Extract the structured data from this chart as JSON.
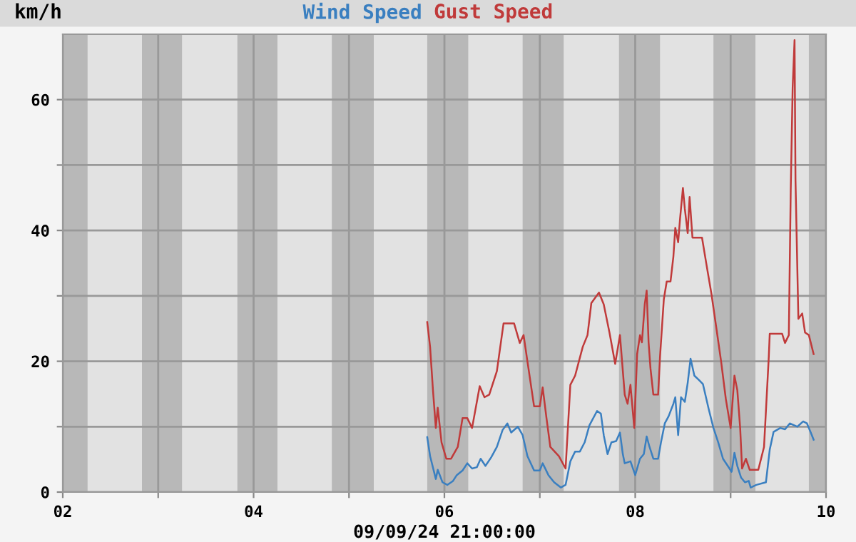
{
  "chart_data": {
    "type": "line",
    "ylabel": "km/h",
    "xlabel": "09/09/24 21:00:00",
    "series": [
      {
        "name": "Wind Speed",
        "color": "#3a7fc0",
        "x": [
          5.82,
          5.85,
          5.91,
          5.93,
          5.98,
          6.03,
          6.09,
          6.13,
          6.19,
          6.24,
          6.29,
          6.34,
          6.38,
          6.43,
          6.49,
          6.55,
          6.61,
          6.66,
          6.7,
          6.77,
          6.82,
          6.87,
          6.94,
          7.0,
          7.03,
          7.09,
          7.15,
          7.22,
          7.27,
          7.32,
          7.37,
          7.42,
          7.47,
          7.52,
          7.6,
          7.64,
          7.67,
          7.71,
          7.75,
          7.8,
          7.84,
          7.87,
          7.89,
          7.95,
          8.0,
          8.05,
          8.09,
          8.12,
          8.15,
          8.19,
          8.24,
          8.27,
          8.31,
          8.35,
          8.4,
          8.42,
          8.45,
          8.48,
          8.52,
          8.55,
          8.58,
          8.62,
          8.67,
          8.71,
          8.77,
          8.82,
          8.87,
          8.92,
          8.97,
          9.01,
          9.04,
          9.07,
          9.11,
          9.15,
          9.19,
          9.21,
          9.27,
          9.37,
          9.41,
          9.45,
          9.52,
          9.57,
          9.62,
          9.7,
          9.76,
          9.8,
          9.84,
          9.87
        ],
        "values": [
          8.4,
          5.5,
          2.0,
          3.4,
          1.5,
          1.1,
          1.7,
          2.6,
          3.3,
          4.4,
          3.6,
          3.8,
          5.1,
          4.0,
          5.3,
          6.9,
          9.5,
          10.5,
          9.1,
          10.0,
          8.7,
          5.5,
          3.3,
          3.3,
          4.4,
          2.6,
          1.5,
          0.7,
          1.1,
          4.7,
          6.2,
          6.2,
          7.6,
          10.2,
          12.4,
          12.0,
          8.7,
          5.8,
          7.6,
          7.8,
          9.1,
          5.8,
          4.4,
          4.7,
          2.6,
          5.1,
          5.8,
          8.5,
          6.9,
          5.1,
          5.1,
          7.6,
          10.5,
          11.6,
          13.5,
          14.5,
          8.7,
          14.5,
          13.8,
          16.7,
          20.4,
          17.8,
          17.1,
          16.5,
          12.7,
          9.8,
          7.6,
          5.1,
          4.0,
          3.1,
          6.0,
          4.0,
          2.2,
          1.5,
          1.7,
          0.7,
          1.1,
          1.5,
          6.5,
          9.2,
          9.8,
          9.6,
          10.5,
          10.0,
          10.8,
          10.5,
          9.1,
          8.0
        ]
      },
      {
        "name": "Gust Speed",
        "color": "#c03a3a",
        "x": [
          5.82,
          5.85,
          5.88,
          5.91,
          5.93,
          5.97,
          6.02,
          6.07,
          6.14,
          6.19,
          6.24,
          6.29,
          6.37,
          6.42,
          6.47,
          6.55,
          6.62,
          6.73,
          6.79,
          6.83,
          6.87,
          6.94,
          7.0,
          7.03,
          7.07,
          7.11,
          7.2,
          7.27,
          7.32,
          7.37,
          7.45,
          7.5,
          7.54,
          7.62,
          7.67,
          7.73,
          7.79,
          7.84,
          7.89,
          7.92,
          7.95,
          7.99,
          8.02,
          8.05,
          8.07,
          8.1,
          8.12,
          8.14,
          8.16,
          8.19,
          8.24,
          8.26,
          8.3,
          8.33,
          8.37,
          8.4,
          8.42,
          8.45,
          8.47,
          8.5,
          8.52,
          8.55,
          8.57,
          8.6,
          8.7,
          8.75,
          8.8,
          8.85,
          8.9,
          8.95,
          9.0,
          9.04,
          9.07,
          9.1,
          9.12,
          9.16,
          9.2,
          9.29,
          9.35,
          9.4,
          9.41,
          9.54,
          9.57,
          9.61,
          9.63,
          9.65,
          9.67,
          9.68,
          9.71,
          9.75,
          9.78,
          9.82,
          9.87
        ],
        "values": [
          26.0,
          22.2,
          15.6,
          9.8,
          12.9,
          7.6,
          5.1,
          5.1,
          6.9,
          11.3,
          11.3,
          9.8,
          16.2,
          14.5,
          14.9,
          18.5,
          25.8,
          25.8,
          22.8,
          24.0,
          20.0,
          13.1,
          13.1,
          16.0,
          11.3,
          6.9,
          5.5,
          3.6,
          16.4,
          17.8,
          22.2,
          24.0,
          28.9,
          30.5,
          28.7,
          24.4,
          19.6,
          24.0,
          14.9,
          13.5,
          16.4,
          9.8,
          21.1,
          24.0,
          22.9,
          28.7,
          30.8,
          22.9,
          18.9,
          14.9,
          14.9,
          20.7,
          29.5,
          32.2,
          32.2,
          36.0,
          40.4,
          38.2,
          41.8,
          46.5,
          43.3,
          39.6,
          45.1,
          38.9,
          38.9,
          34.5,
          30.2,
          25.1,
          20.0,
          14.2,
          9.8,
          17.8,
          15.6,
          9.8,
          3.6,
          5.1,
          3.4,
          3.4,
          6.9,
          20.7,
          24.2,
          24.2,
          22.8,
          24.0,
          46.2,
          61.8,
          69.1,
          47.6,
          26.5,
          27.3,
          24.4,
          24.0,
          21.1
        ]
      }
    ],
    "xlim": [
      2,
      10
    ],
    "xticks": [
      {
        "value": 2,
        "label": "02"
      },
      {
        "value": 3,
        "label": null
      },
      {
        "value": 4,
        "label": "04"
      },
      {
        "value": 5,
        "label": null
      },
      {
        "value": 6,
        "label": "06"
      },
      {
        "value": 7,
        "label": null
      },
      {
        "value": 8,
        "label": "08"
      },
      {
        "value": 9,
        "label": null
      },
      {
        "value": 10,
        "label": "10"
      }
    ],
    "ylim": [
      0,
      70
    ],
    "yticks": [
      0,
      {
        "value": 10,
        "label": null
      },
      20,
      {
        "value": 30,
        "label": null
      },
      40,
      {
        "value": 50,
        "label": null
      },
      60
    ],
    "grid": true,
    "legend": "top",
    "marker": "none",
    "line_style": "solid",
    "bands": [
      {
        "axis": "x",
        "from": 2,
        "to": 2.26,
        "color": "#b8b8b8"
      },
      {
        "axis": "x",
        "from": 2.83,
        "to": 3.25,
        "color": "#b8b8b8"
      },
      {
        "axis": "x",
        "from": 3.83,
        "to": 4.25,
        "color": "#b8b8b8"
      },
      {
        "axis": "x",
        "from": 4.82,
        "to": 5.26,
        "color": "#b8b8b8"
      },
      {
        "axis": "x",
        "from": 5.82,
        "to": 6.25,
        "color": "#b8b8b8"
      },
      {
        "axis": "x",
        "from": 6.82,
        "to": 7.25,
        "color": "#b8b8b8"
      },
      {
        "axis": "x",
        "from": 7.83,
        "to": 8.26,
        "color": "#b8b8b8"
      },
      {
        "axis": "x",
        "from": 8.82,
        "to": 9.26,
        "color": "#b8b8b8"
      },
      {
        "axis": "x",
        "from": 9.82,
        "to": 10,
        "color": "#b8b8b8"
      }
    ]
  }
}
